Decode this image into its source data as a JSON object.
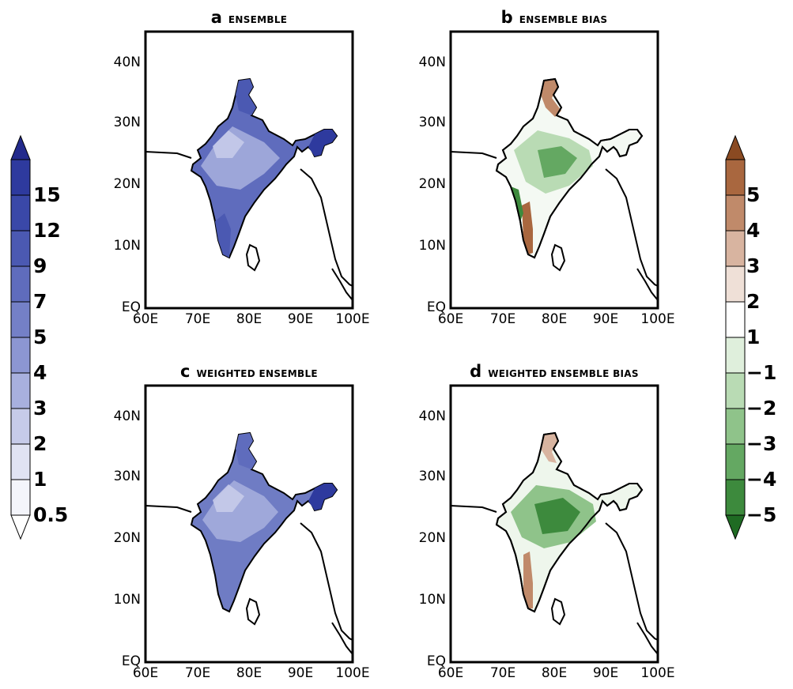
{
  "panels": [
    {
      "letter": "a",
      "title": "ENSEMBLE"
    },
    {
      "letter": "b",
      "title": "ENSEMBLE BIAS"
    },
    {
      "letter": "c",
      "title": "WEIGHTED ENSEMBLE"
    },
    {
      "letter": "d",
      "title": "WEIGHTED ENSEMBLE BIAS"
    }
  ],
  "lat_ticks": [
    "40N",
    "30N",
    "20N",
    "10N",
    "EQ"
  ],
  "lon_ticks": [
    "60E",
    "70E",
    "80E",
    "90E",
    "100E"
  ],
  "colorbar_left": {
    "labels": [
      "15",
      "12",
      "9",
      "7",
      "5",
      "4",
      "3",
      "2",
      "1",
      "0.5"
    ],
    "colors": [
      "#232a8c",
      "#2e3a9e",
      "#3a48a8",
      "#4b59b2",
      "#5f6cbd",
      "#7480c7",
      "#8c96d2",
      "#a8b0de",
      "#c6cbe9",
      "#e0e3f3",
      "#f4f5fb",
      "#ffffff"
    ]
  },
  "colorbar_right": {
    "labels": [
      "5",
      "4",
      "3",
      "2",
      "1",
      "−1",
      "−2",
      "−3",
      "−4",
      "−5"
    ],
    "colors": [
      "#8a4a22",
      "#a9673f",
      "#c08a6a",
      "#d8b4a0",
      "#efe0d7",
      "#ffffff",
      "#dfefdc",
      "#b9dbb4",
      "#8fc38a",
      "#64a862",
      "#3d8a3d",
      "#1f6b23"
    ]
  },
  "colors": {
    "ocean": "#ffffff",
    "coast": "#000000"
  }
}
